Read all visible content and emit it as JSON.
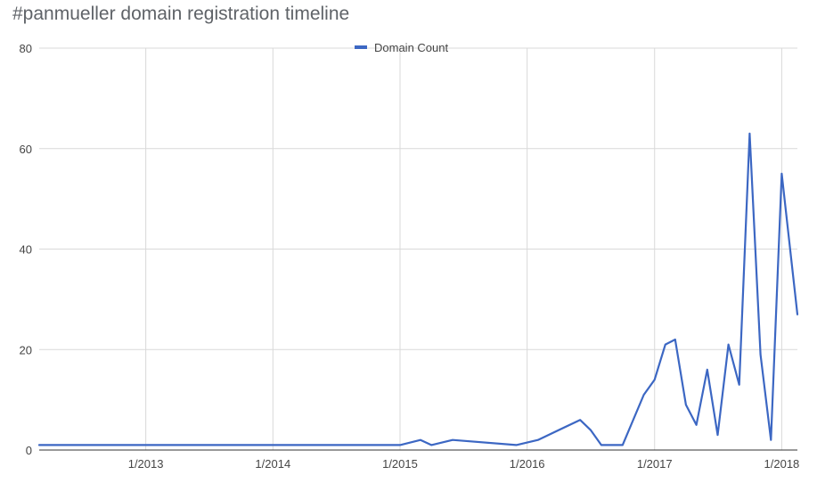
{
  "chart_data": {
    "type": "line",
    "title": "#panmueller domain registration timeline",
    "xlabel": "",
    "ylabel": "",
    "ylim": [
      0,
      80
    ],
    "xlim": [
      "2012-03-01",
      "2018-02-15"
    ],
    "yticks": [
      "0",
      "20",
      "40",
      "60",
      "80"
    ],
    "xticks": [
      {
        "date": "2013-01-01",
        "label": "1/2013"
      },
      {
        "date": "2014-01-01",
        "label": "1/2014"
      },
      {
        "date": "2015-01-01",
        "label": "1/2015"
      },
      {
        "date": "2016-01-01",
        "label": "1/2016"
      },
      {
        "date": "2017-01-01",
        "label": "1/2017"
      },
      {
        "date": "2018-01-01",
        "label": "1/2018"
      }
    ],
    "grid": true,
    "legend": "top",
    "series": [
      {
        "name": "Domain Count",
        "color": "#3c67c3",
        "points": [
          {
            "x": "2012-03-01",
            "y": 1
          },
          {
            "x": "2015-01-01",
            "y": 1
          },
          {
            "x": "2015-03-01",
            "y": 2
          },
          {
            "x": "2015-04-01",
            "y": 1
          },
          {
            "x": "2015-06-01",
            "y": 2
          },
          {
            "x": "2015-12-01",
            "y": 1
          },
          {
            "x": "2016-02-01",
            "y": 2
          },
          {
            "x": "2016-06-01",
            "y": 6
          },
          {
            "x": "2016-07-01",
            "y": 4
          },
          {
            "x": "2016-08-01",
            "y": 1
          },
          {
            "x": "2016-10-01",
            "y": 1
          },
          {
            "x": "2016-12-01",
            "y": 11
          },
          {
            "x": "2017-01-01",
            "y": 14
          },
          {
            "x": "2017-02-01",
            "y": 21
          },
          {
            "x": "2017-03-01",
            "y": 22
          },
          {
            "x": "2017-04-01",
            "y": 9
          },
          {
            "x": "2017-05-01",
            "y": 5
          },
          {
            "x": "2017-06-01",
            "y": 16
          },
          {
            "x": "2017-07-01",
            "y": 3
          },
          {
            "x": "2017-08-01",
            "y": 21
          },
          {
            "x": "2017-09-01",
            "y": 13
          },
          {
            "x": "2017-10-01",
            "y": 63
          },
          {
            "x": "2017-11-01",
            "y": 19
          },
          {
            "x": "2017-12-01",
            "y": 2
          },
          {
            "x": "2018-01-01",
            "y": 55
          },
          {
            "x": "2018-02-15",
            "y": 27
          }
        ]
      }
    ]
  }
}
